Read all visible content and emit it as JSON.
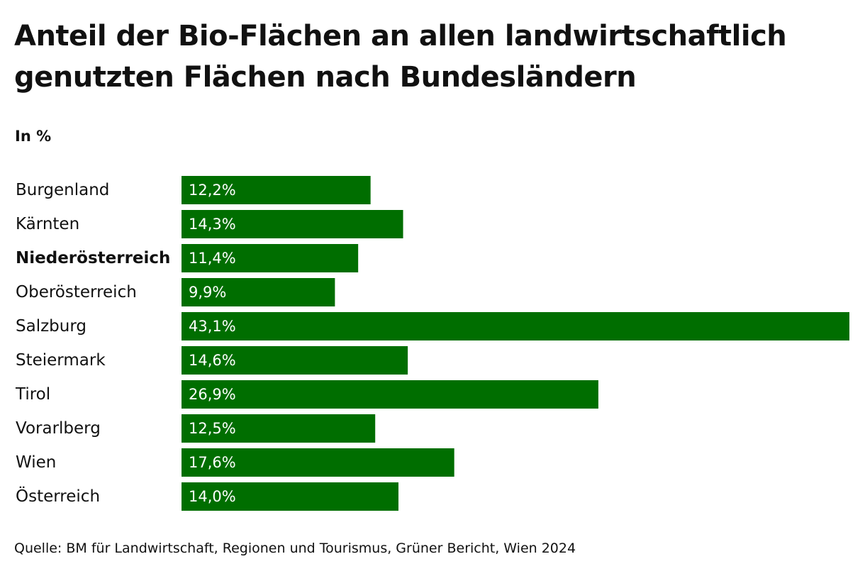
{
  "chart_data": {
    "type": "bar",
    "orientation": "horizontal",
    "title": "Anteil der Bio-Flächen an allen landwirtschaftlich genutzten Flächen nach Bundesländern",
    "unit_label": "In %",
    "categories": [
      "Burgenland",
      "Kärnten",
      "Niederösterreich",
      "Oberösterreich",
      "Salzburg",
      "Steiermark",
      "Tirol",
      "Vorarlberg",
      "Wien",
      "Österreich"
    ],
    "values": [
      12.2,
      14.3,
      11.4,
      9.9,
      43.1,
      14.6,
      26.9,
      12.5,
      17.6,
      14.0
    ],
    "value_labels": [
      "12,2%",
      "14,3%",
      "11,4%",
      "9,9%",
      "43,1%",
      "14,6%",
      "26,9%",
      "12,5%",
      "17,6%",
      "14,0%"
    ],
    "highlighted_category": "Niederösterreich",
    "xlim": [
      0,
      43.1
    ],
    "legend": "none",
    "grid": false
  },
  "colors": {
    "bar": "#006e00",
    "text": "#111111",
    "value_text": "#ffffff"
  },
  "source": "Quelle: BM für Landwirtschaft, Regionen und Tourismus, Grüner Bericht, Wien 2024"
}
